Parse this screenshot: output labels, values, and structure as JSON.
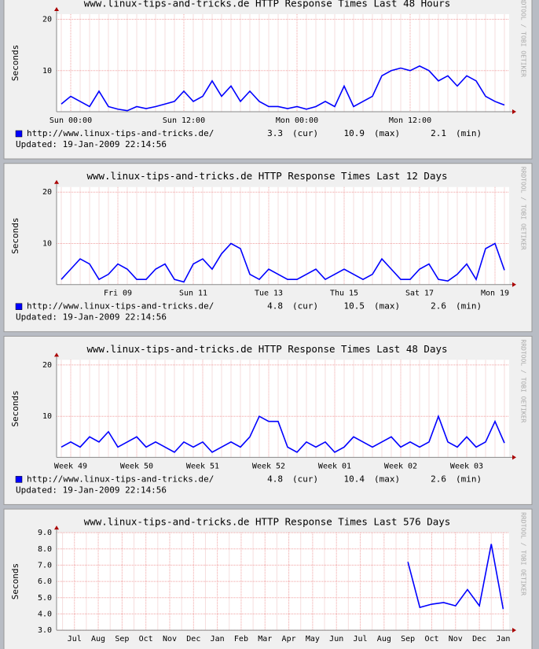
{
  "chart_data": [
    {
      "type": "line",
      "title": "www.linux-tips-and-tricks.de HTTP Response Times Last 48 Hours",
      "y_label": "Seconds",
      "watermark": "RRDTOOL / TOBI OETIKER",
      "categories": [
        null,
        "Sun 00:00",
        null,
        null,
        null,
        null,
        null,
        null,
        null,
        null,
        null,
        null,
        null,
        "Sun 12:00",
        null,
        null,
        null,
        null,
        null,
        null,
        null,
        null,
        null,
        null,
        null,
        "Mon 00:00",
        null,
        null,
        null,
        null,
        null,
        null,
        null,
        null,
        null,
        null,
        null,
        "Mon 12:00",
        null,
        null,
        null,
        null,
        null,
        null,
        null,
        null,
        null,
        null
      ],
      "series": [
        {
          "name": "http://www.linux-tips-and-tricks.de/",
          "color": "#0000ff",
          "values": [
            3.5,
            5,
            4,
            3,
            6,
            3,
            2.5,
            2.2,
            3,
            2.6,
            3,
            3.5,
            4,
            6,
            4,
            5,
            8,
            5,
            7,
            4,
            6,
            4,
            3,
            3,
            2.6,
            3,
            2.5,
            3,
            4,
            3,
            7,
            3,
            4,
            5,
            9,
            10,
            10.5,
            10,
            10.9,
            10,
            8,
            9,
            7,
            9,
            8,
            5,
            4,
            3.3
          ]
        }
      ],
      "stats": [
        {
          "name": "(cur)",
          "value": 3.3
        },
        {
          "name": "(max)",
          "value": 10.9
        },
        {
          "name": "(min)",
          "value": 2.1
        }
      ],
      "updated": "Updated: 19-Jan-2009 22:14:56",
      "ylim": [
        2,
        21
      ],
      "yticks": [
        10,
        20
      ],
      "grid": true
    },
    {
      "type": "line",
      "title": "www.linux-tips-and-tricks.de HTTP Response Times Last 12 Days",
      "y_label": "Seconds",
      "watermark": "RRDTOOL / TOBI OETIKER",
      "categories": [
        null,
        null,
        null,
        null,
        null,
        null,
        "Fri 09",
        null,
        null,
        null,
        null,
        null,
        null,
        null,
        "Sun 11",
        null,
        null,
        null,
        null,
        null,
        null,
        null,
        "Tue 13",
        null,
        null,
        null,
        null,
        null,
        null,
        null,
        "Thu 15",
        null,
        null,
        null,
        null,
        null,
        null,
        null,
        "Sat 17",
        null,
        null,
        null,
        null,
        null,
        null,
        null,
        "Mon 19",
        null
      ],
      "series": [
        {
          "name": "http://www.linux-tips-and-tricks.de/",
          "color": "#0000ff",
          "values": [
            3,
            5,
            7,
            6,
            3,
            4,
            6,
            5,
            3,
            3,
            5,
            6,
            3,
            2.5,
            6,
            7,
            5,
            8,
            10,
            9,
            4,
            3,
            5,
            4,
            3,
            3,
            4,
            5,
            3,
            4,
            5,
            4,
            3,
            4,
            7,
            5,
            3,
            3,
            5,
            6,
            3,
            2.7,
            4,
            6,
            3,
            9,
            10,
            4.8
          ]
        }
      ],
      "stats": [
        {
          "name": "(cur)",
          "value": 4.8
        },
        {
          "name": "(max)",
          "value": 10.5
        },
        {
          "name": "(min)",
          "value": 2.6
        }
      ],
      "updated": "Updated: 19-Jan-2009 22:14:56",
      "ylim": [
        2,
        21
      ],
      "yticks": [
        10,
        20
      ],
      "grid": true
    },
    {
      "type": "line",
      "title": "www.linux-tips-and-tricks.de HTTP Response Times Last 48 Days",
      "y_label": "Seconds",
      "watermark": "RRDTOOL / TOBI OETIKER",
      "categories": [
        null,
        "Week 49",
        null,
        null,
        null,
        null,
        null,
        null,
        "Week 50",
        null,
        null,
        null,
        null,
        null,
        null,
        "Week 51",
        null,
        null,
        null,
        null,
        null,
        null,
        "Week 52",
        null,
        null,
        null,
        null,
        null,
        null,
        "Week 01",
        null,
        null,
        null,
        null,
        null,
        null,
        "Week 02",
        null,
        null,
        null,
        null,
        null,
        null,
        "Week 03",
        null,
        null,
        null,
        null
      ],
      "series": [
        {
          "name": "http://www.linux-tips-and-tricks.de/",
          "color": "#0000ff",
          "values": [
            4,
            5,
            4,
            6,
            5,
            7,
            4,
            5,
            6,
            4,
            5,
            4,
            3,
            5,
            4,
            5,
            3,
            4,
            5,
            4,
            6,
            10,
            9,
            9,
            4,
            3,
            5,
            4,
            5,
            3,
            4,
            6,
            5,
            4,
            5,
            6,
            4,
            5,
            4,
            5,
            10,
            5,
            4,
            6,
            4,
            5,
            9,
            4.8
          ]
        }
      ],
      "stats": [
        {
          "name": "(cur)",
          "value": 4.8
        },
        {
          "name": "(max)",
          "value": 10.4
        },
        {
          "name": "(min)",
          "value": 2.6
        }
      ],
      "updated": "Updated: 19-Jan-2009 22:14:56",
      "ylim": [
        2,
        21
      ],
      "yticks": [
        10,
        20
      ],
      "grid": true
    },
    {
      "type": "line",
      "title": "www.linux-tips-and-tricks.de HTTP Response Times Last 576 Days",
      "y_label": "Seconds",
      "watermark": "RRDTOOL / TOBI OETIKER",
      "categories": [
        null,
        "Jul",
        null,
        "Aug",
        null,
        "Sep",
        null,
        "Oct",
        null,
        "Nov",
        null,
        "Dec",
        null,
        "Jan",
        null,
        "Feb",
        null,
        "Mar",
        null,
        "Apr",
        null,
        "May",
        null,
        "Jun",
        null,
        "Jul",
        null,
        "Aug",
        null,
        "Sep",
        null,
        "Oct",
        null,
        "Nov",
        null,
        "Dec",
        null,
        "Jan"
      ],
      "series": [
        {
          "name": "http://www.linux-tips-and-tricks.de/",
          "color": "#0000ff",
          "values": [
            null,
            null,
            null,
            null,
            null,
            null,
            null,
            null,
            null,
            null,
            null,
            null,
            null,
            null,
            null,
            null,
            null,
            null,
            null,
            null,
            null,
            null,
            null,
            null,
            null,
            null,
            null,
            null,
            null,
            7.2,
            4.4,
            4.6,
            4.7,
            4.5,
            5.5,
            4.5,
            8.3,
            4.3
          ]
        }
      ],
      "ylim": [
        3,
        9
      ],
      "yticks": [
        {
          "value": 3,
          "label": "3.0"
        },
        {
          "value": 4,
          "label": "4.0"
        },
        {
          "value": 5,
          "label": "5.0"
        },
        {
          "value": 6,
          "label": "6.0"
        },
        {
          "value": 7,
          "label": "7.0"
        },
        {
          "value": 8,
          "label": "8.0"
        },
        {
          "value": 9,
          "label": "9.0"
        }
      ],
      "grid": true
    }
  ]
}
